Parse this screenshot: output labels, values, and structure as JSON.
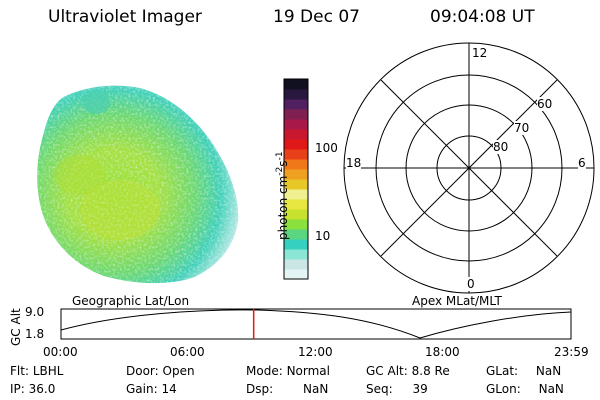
{
  "header": {
    "title": "Ultraviolet Imager",
    "date": "19 Dec 07",
    "time": "09:04:08 UT"
  },
  "colorbar": {
    "label": "photon cm",
    "sup_a": "-2",
    "mid": "s",
    "sup_b": "-1",
    "ticks": [
      "100",
      "10"
    ],
    "colors": [
      "#e4f4f4",
      "#cce6e6",
      "#8ce6d6",
      "#36d0c0",
      "#5ad680",
      "#8ae03c",
      "#c8e02e",
      "#e8e640",
      "#f0f090",
      "#e8c828",
      "#f0a020",
      "#f07818",
      "#e84018",
      "#e01818",
      "#c81830",
      "#a81848",
      "#802050",
      "#502060",
      "#281840",
      "#101020"
    ]
  },
  "map_labels": {
    "left": "Geographic Lat/Lon",
    "right": "Apex MLat/MLT"
  },
  "polar": {
    "top": "12",
    "left": "18",
    "right": "6",
    "bottom": "0",
    "lat60": "60",
    "lat70": "70",
    "lat80": "80"
  },
  "timeline": {
    "ylabel": "GC Alt",
    "ymax": "9.0",
    "ymin": "1.8",
    "ticks": [
      "00:00",
      "06:00",
      "12:00",
      "18:00",
      "23:59"
    ],
    "current_time_fraction": 0.3778
  },
  "info": {
    "flt_label": "Flt:",
    "flt_value": "LBHL",
    "ip_label": "IP:",
    "ip_value": "36.0",
    "door_label": "Door:",
    "door_value": "Open",
    "gain_label": "Gain:",
    "gain_value": "14",
    "mode_label": "Mode:",
    "mode_value": "Normal",
    "dsp_label": "Dsp:",
    "dsp_value": "NaN",
    "gcalt_label": "GC Alt:",
    "gcalt_value": "8.8 Re",
    "seq_label": "Seq:",
    "seq_value": "39",
    "glat_label": "GLat:",
    "glat_value": "NaN",
    "glon_label": "GLon:",
    "glon_value": "NaN"
  }
}
